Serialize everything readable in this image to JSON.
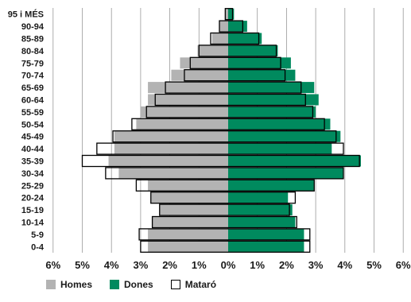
{
  "chart_data": {
    "type": "bar",
    "orientation": "horizontal",
    "subtype": "population-pyramid",
    "categories": [
      "95 i MÉS",
      "90-94",
      "85-89",
      "80-84",
      "75-79",
      "70-74",
      "65-69",
      "60-64",
      "55-59",
      "50-54",
      "45-49",
      "40-44",
      "35-39",
      "30-34",
      "25-29",
      "20-24",
      "15-19",
      "10-14",
      "5-9",
      "0-4"
    ],
    "x_ticks": [
      "6%",
      "5%",
      "4%",
      "3%",
      "2%",
      "1%",
      "0%",
      "1%",
      "2%",
      "3%",
      "4%",
      "5%",
      "6%"
    ],
    "xlim": [
      -6,
      6
    ],
    "grid": true,
    "legend_position": "bottom-left",
    "series": [
      {
        "name": "Homes",
        "role": "left-fill",
        "color": "#b3b3b3",
        "values": [
          0.1,
          0.3,
          0.55,
          1.05,
          1.65,
          1.95,
          2.75,
          2.75,
          3.0,
          3.15,
          3.9,
          3.9,
          4.1,
          3.75,
          2.75,
          2.65,
          2.35,
          2.6,
          2.75,
          2.75
        ]
      },
      {
        "name": "Dones",
        "role": "right-fill",
        "color": "#008a5e",
        "values": [
          0.2,
          0.65,
          1.15,
          1.7,
          2.15,
          2.3,
          2.95,
          3.1,
          3.0,
          3.5,
          3.85,
          3.55,
          4.55,
          3.95,
          2.95,
          2.05,
          2.2,
          2.3,
          2.6,
          2.6
        ]
      },
      {
        "name": "Mataró",
        "role": "outline",
        "color": "#000000",
        "left_values": [
          0.1,
          0.3,
          0.6,
          1.0,
          1.3,
          1.5,
          2.15,
          2.5,
          2.8,
          3.3,
          3.95,
          4.5,
          5.0,
          4.2,
          3.15,
          2.65,
          2.35,
          2.6,
          3.05,
          3.0
        ],
        "right_values": [
          0.15,
          0.5,
          1.05,
          1.65,
          1.8,
          1.95,
          2.5,
          2.65,
          2.9,
          3.3,
          3.7,
          3.95,
          4.5,
          3.95,
          2.95,
          2.3,
          2.1,
          2.35,
          2.8,
          2.8
        ]
      }
    ]
  },
  "legend": {
    "homes_label": "Homes",
    "dones_label": "Dones",
    "mataro_label": "Mataró"
  },
  "colors": {
    "homes": "#b3b3b3",
    "dones": "#008a5e",
    "outline": "#000000",
    "grid": "#9a9a9a"
  }
}
